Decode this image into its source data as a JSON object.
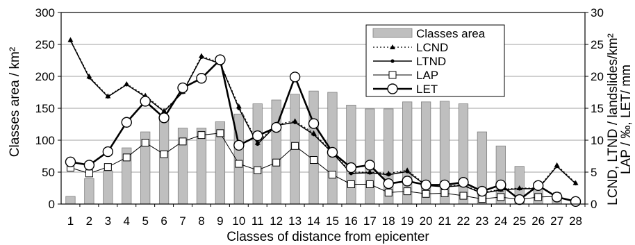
{
  "chart_data": {
    "type": "bar",
    "categories": [
      "1",
      "2",
      "3",
      "4",
      "5",
      "6",
      "7",
      "8",
      "9",
      "10",
      "11",
      "12",
      "13",
      "14",
      "15",
      "16",
      "17",
      "18",
      "19",
      "20",
      "21",
      "22",
      "23",
      "24",
      "25",
      "26",
      "27",
      "28"
    ],
    "xlabel": "Classes of distance from epicenter",
    "ylabel_left": "Classes area / km²",
    "ylabel_right_line1": "LCND, LTND / landslides/km²",
    "ylabel_right_line2": "LAP / ‰, LET/ mm",
    "ylim_left": [
      0,
      300
    ],
    "ylim_right": [
      0,
      30
    ],
    "yticks_left": [
      "0",
      "50",
      "100",
      "150",
      "200",
      "250",
      "300"
    ],
    "yticks_right": [
      "0",
      "5",
      "10",
      "15",
      "20",
      "25",
      "30"
    ],
    "grid": "horizontal",
    "legend_position": "top-right",
    "bar_series": {
      "name": "Classes area",
      "axis": "left",
      "color": "#bfbfbf",
      "values": [
        12,
        40,
        52,
        88,
        113,
        132,
        119,
        119,
        129,
        141,
        157,
        163,
        172,
        177,
        175,
        155,
        149,
        149,
        160,
        160,
        161,
        157,
        113,
        91,
        59,
        33,
        12,
        3
      ]
    },
    "series": [
      {
        "name": "LCND",
        "axis": "right",
        "style": "dotted-triangle",
        "values": [
          25.7,
          20.0,
          16.9,
          18.8,
          17.0,
          14.6,
          17.6,
          23.2,
          22.1,
          15.3,
          9.6,
          12.5,
          13.0,
          11.1,
          8.1,
          5.0,
          5.0,
          4.8,
          5.3,
          3.0,
          2.8,
          3.0,
          1.8,
          2.3,
          2.5,
          2.5,
          6.1,
          3.3
        ]
      },
      {
        "name": "LTND",
        "axis": "right",
        "style": "solid-dot",
        "values": [
          25.6,
          19.8,
          16.8,
          18.7,
          16.8,
          14.5,
          17.5,
          23.0,
          22.0,
          15.0,
          9.4,
          12.3,
          12.8,
          10.9,
          8.0,
          4.8,
          4.9,
          4.6,
          5.1,
          2.9,
          2.7,
          2.9,
          1.7,
          2.2,
          2.4,
          2.4,
          5.9,
          3.2
        ]
      },
      {
        "name": "LAP",
        "axis": "right",
        "style": "thin-open-square",
        "values": [
          5.7,
          4.8,
          5.8,
          7.3,
          9.6,
          7.8,
          9.8,
          10.8,
          11.1,
          6.3,
          5.3,
          6.5,
          9.1,
          6.9,
          4.6,
          3.1,
          3.1,
          1.8,
          2.0,
          1.6,
          1.7,
          1.3,
          0.8,
          1.1,
          0.7,
          1.1,
          1.2,
          0.4
        ]
      },
      {
        "name": "LET",
        "axis": "right",
        "style": "thick-open-circle",
        "values": [
          6.6,
          6.1,
          8.2,
          12.8,
          16.1,
          13.5,
          18.2,
          19.7,
          22.6,
          9.2,
          10.7,
          12.0,
          19.9,
          12.6,
          8.1,
          5.7,
          6.1,
          3.2,
          3.6,
          3.0,
          3.0,
          3.4,
          2.0,
          3.0,
          0.7,
          2.9,
          1.1,
          0.4
        ]
      }
    ]
  }
}
